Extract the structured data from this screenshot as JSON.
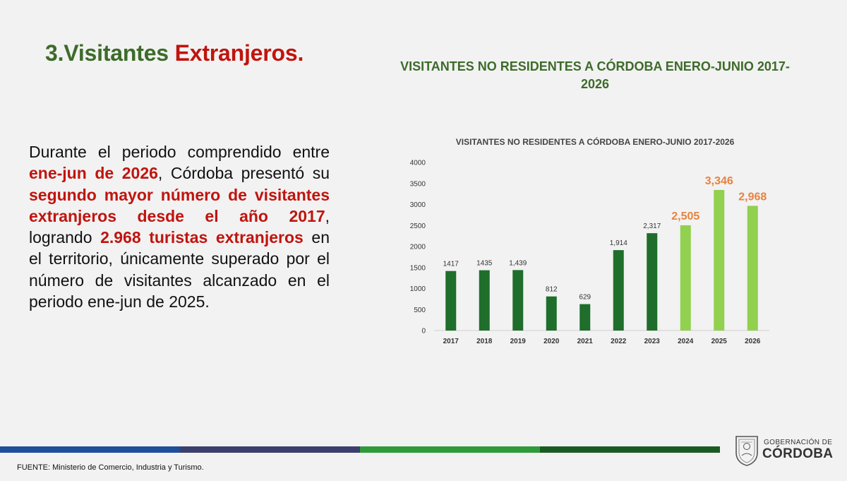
{
  "slide": {
    "title_part1": "3.Visitantes ",
    "title_part2": "Extranjeros.",
    "heading": "VISITANTES NO RESIDENTES A CÓRDOBA ENERO-JUNIO 2017-2026",
    "body": {
      "t1": "Durante el periodo comprendido entre ",
      "h1": "ene-jun de 2026",
      "t2": ", Córdoba presentó su ",
      "h2": "segundo mayor número de visitantes extranjeros desde el año 2017",
      "t3": ", logrando ",
      "h3": "2.968 turistas extranjeros",
      "t4": " en el territorio, únicamente superado por el número de visitantes alcanzado en el periodo ene-jun de 2025."
    },
    "source": "FUENTE: Ministerio de Comercio, Industria y Turismo."
  },
  "logo": {
    "line1": "GOBERNACIÓN DE",
    "line2": "CÓRDOBA",
    "icon": "coat-of-arms-icon"
  },
  "colors": {
    "title_green": "#3d6b2a",
    "highlight_red": "#c0140e",
    "bar_dark": "#1f6e2b",
    "bar_light": "#92d050",
    "label_orange": "#e8823e",
    "band": [
      "#1f4e9a",
      "#3b3f6e",
      "#2e9a3a",
      "#1c5a23"
    ]
  },
  "chart_data": {
    "type": "bar",
    "title": "VISITANTES NO RESIDENTES A CÓRDOBA ENERO-JUNIO 2017-2026",
    "categories": [
      "2017",
      "2018",
      "2019",
      "2020",
      "2021",
      "2022",
      "2023",
      "2024",
      "2025",
      "2026"
    ],
    "values": [
      1417,
      1435,
      1439,
      812,
      629,
      1914,
      2317,
      2505,
      3346,
      2968
    ],
    "data_labels": [
      "1417",
      "1435",
      "1,439",
      "812",
      "629",
      "1,914",
      "2,317",
      "2,505",
      "3,346",
      "2,968"
    ],
    "highlighted": [
      false,
      false,
      false,
      false,
      false,
      false,
      false,
      true,
      true,
      true
    ],
    "yticks": [
      "0",
      "500",
      "1000",
      "1500",
      "2000",
      "2500",
      "3000",
      "3500",
      "4000"
    ],
    "ylim": [
      0,
      4000
    ],
    "grid": false,
    "xlabel": "",
    "ylabel": ""
  }
}
